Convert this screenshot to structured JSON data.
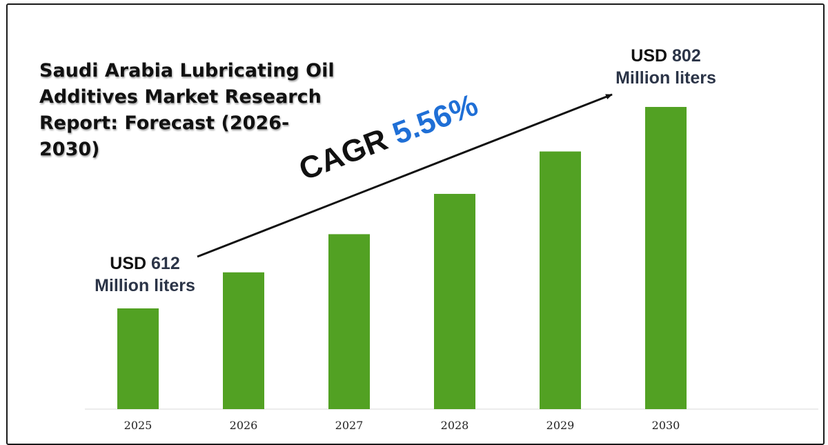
{
  "title": "Saudi Arabia Lubricating Oil Additives Market Research Report: Forecast (2026-2030)",
  "start_callout": {
    "currency": "USD",
    "value": "612",
    "unit": "Million liters"
  },
  "end_callout": {
    "currency": "USD",
    "value": "802",
    "unit": "Million liters"
  },
  "cagr": {
    "label": "CAGR",
    "value": "5.56%"
  },
  "colors": {
    "bar": "#52a123",
    "arrow": "#111111",
    "cagr_value": "#1f6fd6",
    "callout_text": "#2b3447"
  },
  "chart_data": {
    "type": "bar",
    "title": "Saudi Arabia Lubricating Oil Additives Market Research Report: Forecast (2026-2030)",
    "categories": [
      "2025",
      "2026",
      "2027",
      "2028",
      "2029",
      "2030"
    ],
    "values": [
      612,
      646,
      682,
      720,
      760,
      802
    ],
    "unit": "Million liters",
    "xlabel": "",
    "ylabel": "",
    "grid": false,
    "legend": "none"
  }
}
